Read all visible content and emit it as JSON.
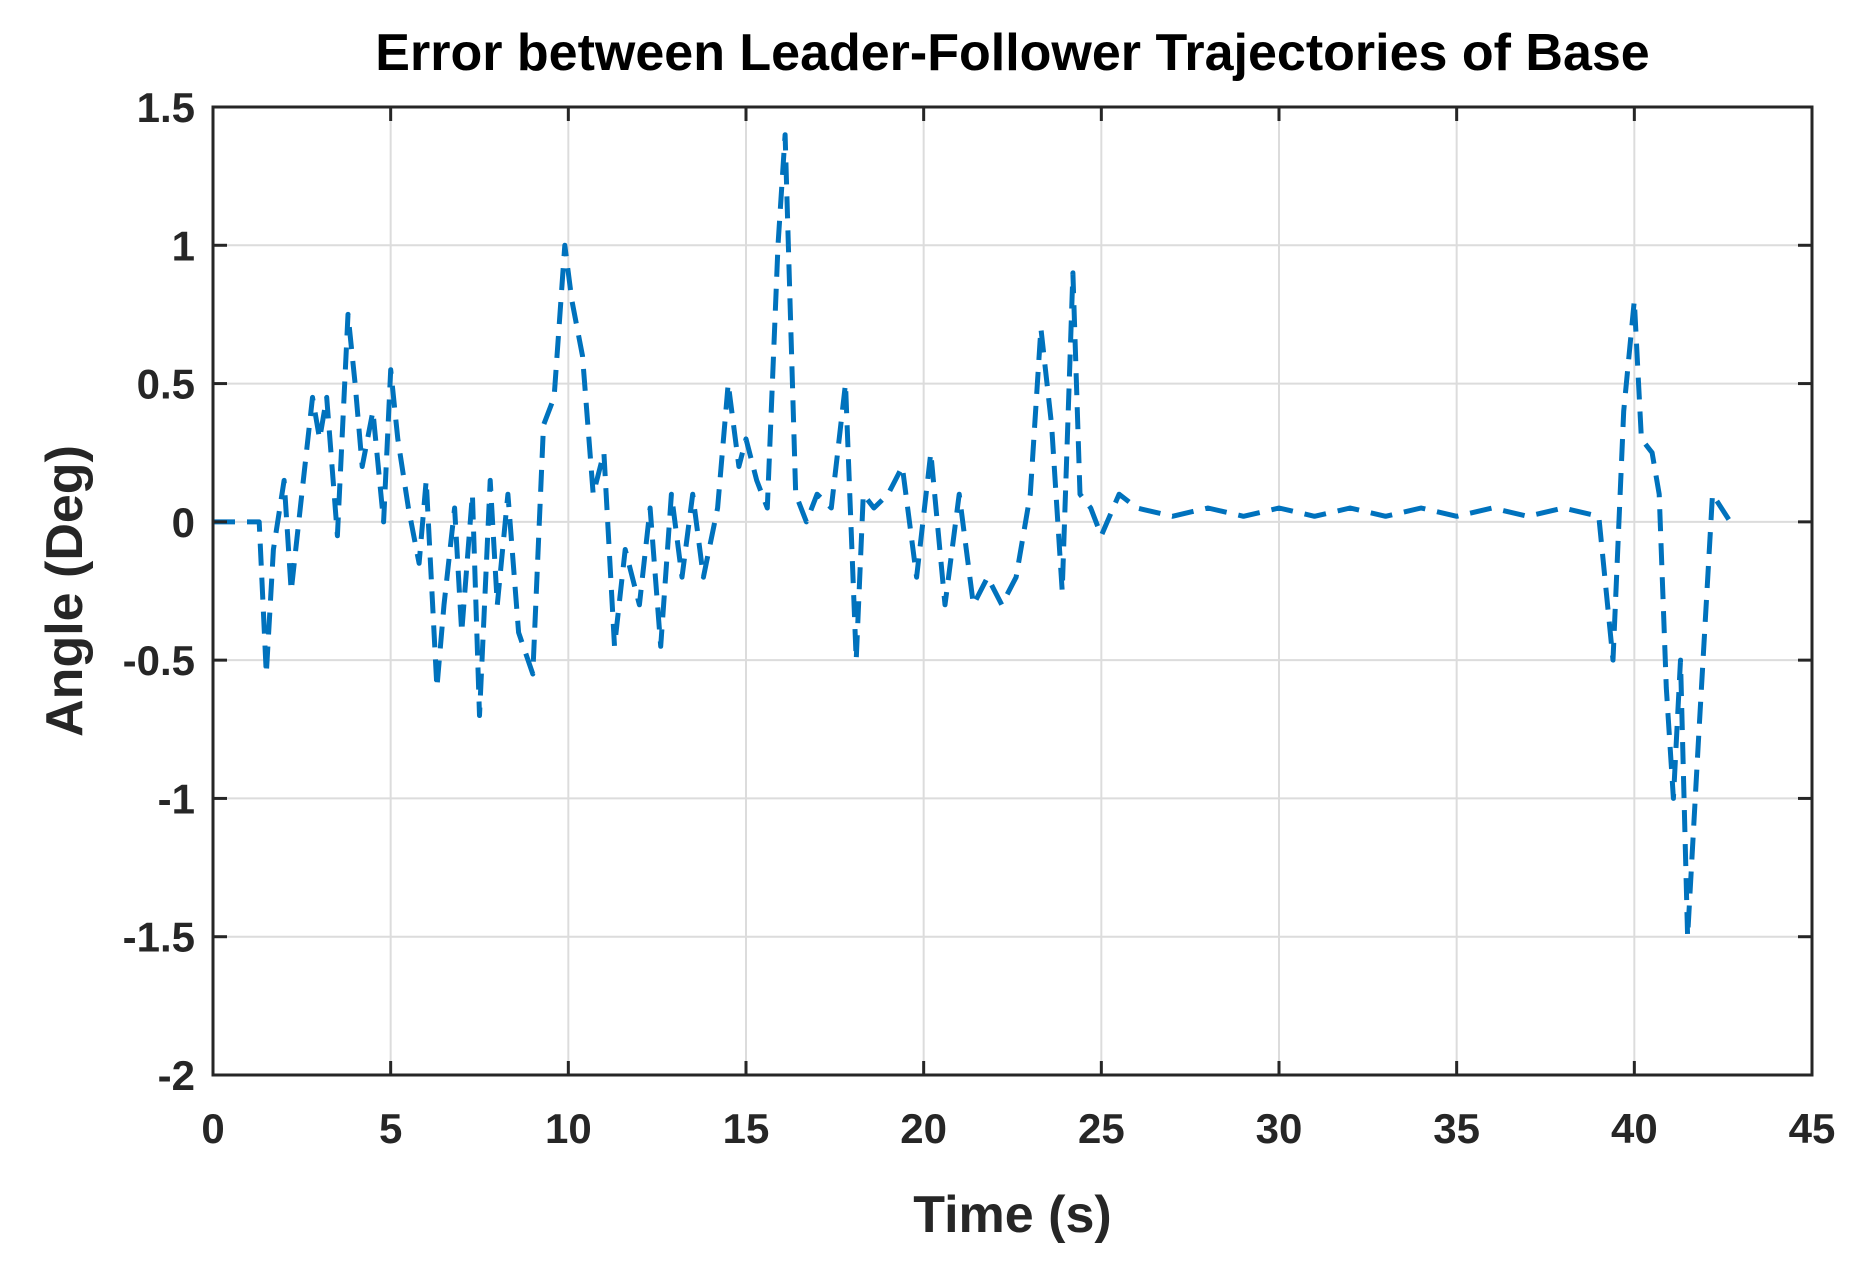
{
  "chart_data": {
    "type": "line",
    "title": "Error between Leader-Follower Trajectories of Base",
    "xlabel": "Time (s)",
    "ylabel": "Angle (Deg)",
    "xlim": [
      0,
      45
    ],
    "ylim": [
      -2,
      1.5
    ],
    "xticks": [
      0,
      5,
      10,
      15,
      20,
      25,
      30,
      35,
      40,
      45
    ],
    "xtick_labels": [
      "0",
      "5",
      "10",
      "15",
      "20",
      "25",
      "30",
      "35",
      "40",
      "45"
    ],
    "yticks": [
      -2,
      -1.5,
      -1,
      -0.5,
      0,
      0.5,
      1,
      1.5
    ],
    "ytick_labels": [
      "-2",
      "-1.5",
      "-1",
      "-0.5",
      "0",
      "0.5",
      "1",
      "1.5"
    ],
    "grid": true,
    "line_style": "dashed",
    "series_color": "#0072BD",
    "series": [
      {
        "x": [
          0,
          1.3,
          1.5,
          1.7,
          2.0,
          2.2,
          2.5,
          2.8,
          3.0,
          3.2,
          3.5,
          3.8,
          4.0,
          4.2,
          4.5,
          4.8,
          5.0,
          5.2,
          5.5,
          5.8,
          6.0,
          6.3,
          6.5,
          6.8,
          7.0,
          7.3,
          7.5,
          7.8,
          8.0,
          8.3,
          8.6,
          9.0,
          9.3,
          9.6,
          9.9,
          10.1,
          10.4,
          10.7,
          11.0,
          11.3,
          11.6,
          12.0,
          12.3,
          12.6,
          12.9,
          13.2,
          13.5,
          13.8,
          14.2,
          14.5,
          14.8,
          15.0,
          15.3,
          15.6,
          15.9,
          16.1,
          16.4,
          16.7,
          17.0,
          17.4,
          17.8,
          18.1,
          18.3,
          18.6,
          19.0,
          19.4,
          19.8,
          20.2,
          20.6,
          21.0,
          21.4,
          21.8,
          22.2,
          22.6,
          23.0,
          23.3,
          23.6,
          23.9,
          24.2,
          24.4,
          24.7,
          25.0,
          25.5,
          26.0,
          27.0,
          28.0,
          29.0,
          30.0,
          31.0,
          32.0,
          33.0,
          34.0,
          35.0,
          36.0,
          37.0,
          38.0,
          39.0,
          39.4,
          39.7,
          40.0,
          40.2,
          40.5,
          40.7,
          40.9,
          41.1,
          41.3,
          41.5,
          41.8,
          42.2,
          42.7
        ],
        "y": [
          0,
          0,
          -0.55,
          -0.1,
          0.15,
          -0.25,
          0.1,
          0.45,
          0.3,
          0.45,
          -0.05,
          0.75,
          0.5,
          0.2,
          0.4,
          0.0,
          0.55,
          0.3,
          0.05,
          -0.15,
          0.15,
          -0.6,
          -0.3,
          0.05,
          -0.4,
          0.1,
          -0.7,
          0.15,
          -0.3,
          0.1,
          -0.4,
          -0.55,
          0.35,
          0.45,
          1.0,
          0.8,
          0.6,
          0.1,
          0.25,
          -0.45,
          -0.1,
          -0.3,
          0.05,
          -0.45,
          0.1,
          -0.2,
          0.1,
          -0.2,
          0.05,
          0.5,
          0.2,
          0.3,
          0.15,
          0.05,
          1.0,
          1.4,
          0.1,
          0.0,
          0.1,
          0.05,
          0.5,
          -0.5,
          0.1,
          0.05,
          0.1,
          0.2,
          -0.2,
          0.25,
          -0.3,
          0.1,
          -0.3,
          -0.2,
          -0.3,
          -0.2,
          0.1,
          0.7,
          0.35,
          -0.25,
          0.9,
          0.1,
          0.05,
          -0.05,
          0.1,
          0.05,
          0.02,
          0.05,
          0.02,
          0.05,
          0.02,
          0.05,
          0.02,
          0.05,
          0.02,
          0.05,
          0.02,
          0.05,
          0.02,
          -0.5,
          0.4,
          0.8,
          0.3,
          0.25,
          0.1,
          -0.6,
          -1.0,
          -0.5,
          -1.5,
          -0.8,
          0.1,
          0.0
        ]
      }
    ]
  }
}
